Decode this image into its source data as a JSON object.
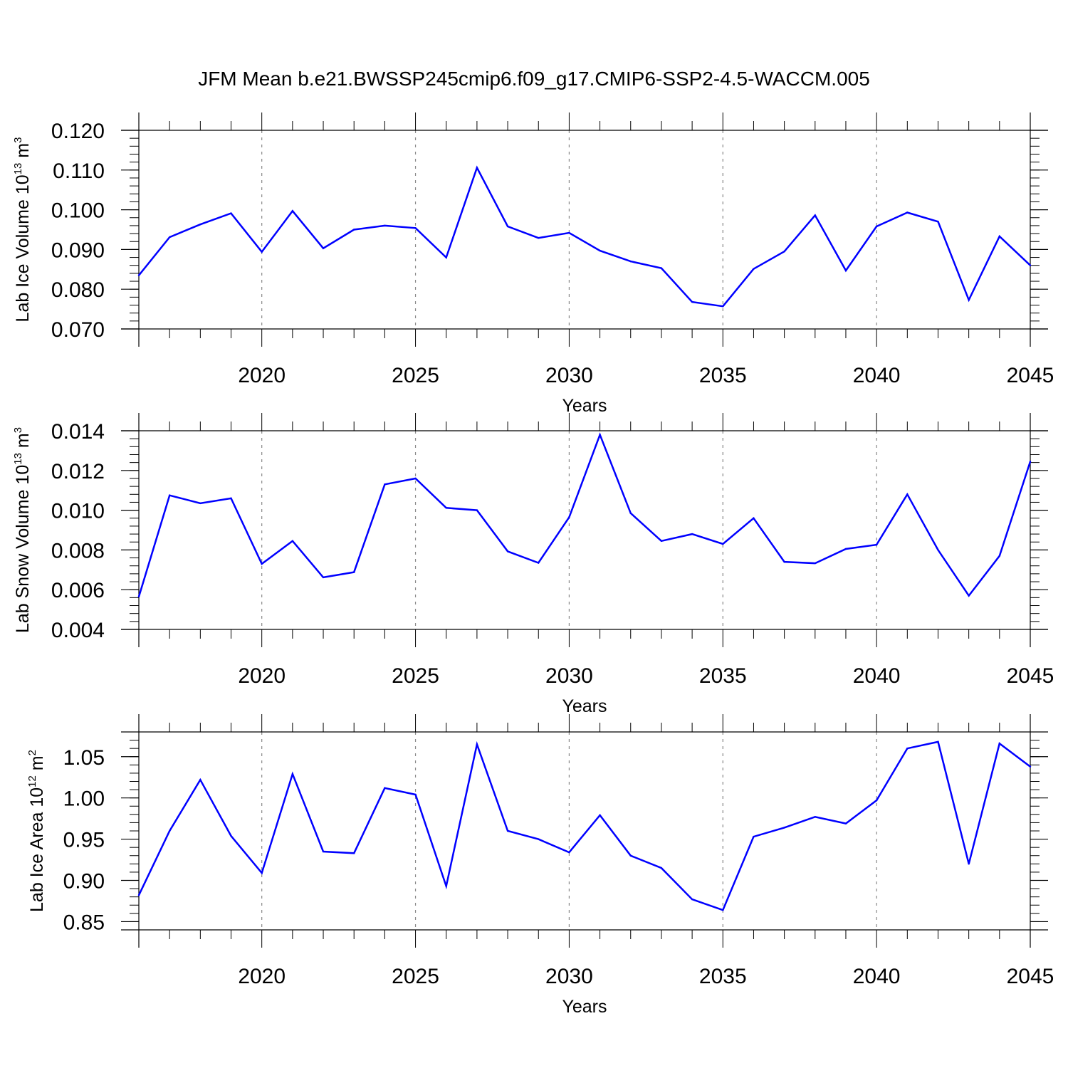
{
  "title": "JFM Mean b.e21.BWSSP245cmip6.f09_g17.CMIP6-SSP2-4.5-WACCM.005",
  "colors": {
    "line": "#0000ff",
    "axis": "#000000",
    "grid": "#888888"
  },
  "chart_data": [
    {
      "type": "line",
      "ylabel_main": "Lab Ice Volume 10",
      "ylabel_exp": "13",
      "ylabel_unit": "m",
      "ylabel_unit_exp": "3",
      "xlabel": "Years",
      "xlim": [
        2016,
        2045
      ],
      "ylim": [
        0.07,
        0.12
      ],
      "yticks": [
        "0.120",
        "0.110",
        "0.100",
        "0.090",
        "0.080",
        "0.070"
      ],
      "ytick_values": [
        0.12,
        0.11,
        0.1,
        0.09,
        0.08,
        0.07
      ],
      "xticks": [
        "2020",
        "2025",
        "2030",
        "2035",
        "2040",
        "2045"
      ],
      "xtick_values": [
        2020,
        2025,
        2030,
        2035,
        2040,
        2045
      ],
      "x": [
        2016,
        2017,
        2018,
        2019,
        2020,
        2021,
        2022,
        2023,
        2024,
        2025,
        2026,
        2027,
        2028,
        2029,
        2030,
        2031,
        2032,
        2033,
        2034,
        2035,
        2036,
        2037,
        2038,
        2039,
        2040,
        2041,
        2042,
        2043,
        2044,
        2045
      ],
      "values": [
        0.0835,
        0.0931,
        0.0963,
        0.0991,
        0.0894,
        0.0997,
        0.0903,
        0.095,
        0.096,
        0.0954,
        0.088,
        0.1106,
        0.0958,
        0.0929,
        0.0942,
        0.0897,
        0.087,
        0.0853,
        0.0768,
        0.0757,
        0.0851,
        0.0895,
        0.0986,
        0.0847,
        0.0958,
        0.0993,
        0.097,
        0.0773,
        0.0933,
        0.086
      ]
    },
    {
      "type": "line",
      "ylabel_main": "Lab Snow Volume 10",
      "ylabel_exp": "13",
      "ylabel_unit": "m",
      "ylabel_unit_exp": "3",
      "xlabel": "Years",
      "xlim": [
        2016,
        2045
      ],
      "ylim": [
        0.004,
        0.014
      ],
      "yticks": [
        "0.014",
        "0.012",
        "0.010",
        "0.008",
        "0.006",
        "0.004"
      ],
      "ytick_values": [
        0.014,
        0.012,
        0.01,
        0.008,
        0.006,
        0.004
      ],
      "xticks": [
        "2020",
        "2025",
        "2030",
        "2035",
        "2040",
        "2045"
      ],
      "xtick_values": [
        2020,
        2025,
        2030,
        2035,
        2040,
        2045
      ],
      "x": [
        2016,
        2017,
        2018,
        2019,
        2020,
        2021,
        2022,
        2023,
        2024,
        2025,
        2026,
        2027,
        2028,
        2029,
        2030,
        2031,
        2032,
        2033,
        2034,
        2035,
        2036,
        2037,
        2038,
        2039,
        2040,
        2041,
        2042,
        2043,
        2044,
        2045
      ],
      "values": [
        0.00565,
        0.01075,
        0.01035,
        0.0106,
        0.0073,
        0.00845,
        0.00662,
        0.00688,
        0.0113,
        0.0116,
        0.01012,
        0.01,
        0.00793,
        0.00735,
        0.00965,
        0.0138,
        0.00985,
        0.00845,
        0.0088,
        0.0083,
        0.0096,
        0.0074,
        0.00733,
        0.00805,
        0.00826,
        0.0108,
        0.008,
        0.0057,
        0.0077,
        0.01245
      ]
    },
    {
      "type": "line",
      "ylabel_main": "Lab Ice Area 10",
      "ylabel_exp": "12",
      "ylabel_unit": "m",
      "ylabel_unit_exp": "2",
      "xlabel": "Years",
      "xlim": [
        2016,
        2045
      ],
      "ylim": [
        0.84,
        1.08
      ],
      "yticks": [
        "1.05",
        "1.00",
        "0.95",
        "0.90",
        "0.85"
      ],
      "ytick_values": [
        1.05,
        1.0,
        0.95,
        0.9,
        0.85
      ],
      "xticks": [
        "2020",
        "2025",
        "2030",
        "2035",
        "2040",
        "2045"
      ],
      "xtick_values": [
        2020,
        2025,
        2030,
        2035,
        2040,
        2045
      ],
      "x": [
        2016,
        2017,
        2018,
        2019,
        2020,
        2021,
        2022,
        2023,
        2024,
        2025,
        2026,
        2027,
        2028,
        2029,
        2030,
        2031,
        2032,
        2033,
        2034,
        2035,
        2036,
        2037,
        2038,
        2039,
        2040,
        2041,
        2042,
        2043,
        2044,
        2045
      ],
      "values": [
        0.882,
        0.96,
        1.022,
        0.954,
        0.909,
        1.029,
        0.935,
        0.933,
        1.012,
        1.004,
        0.893,
        1.065,
        0.96,
        0.95,
        0.934,
        0.979,
        0.93,
        0.915,
        0.877,
        0.864,
        0.953,
        0.964,
        0.977,
        0.969,
        0.997,
        1.06,
        1.068,
        0.92,
        1.066,
        1.038
      ]
    }
  ]
}
